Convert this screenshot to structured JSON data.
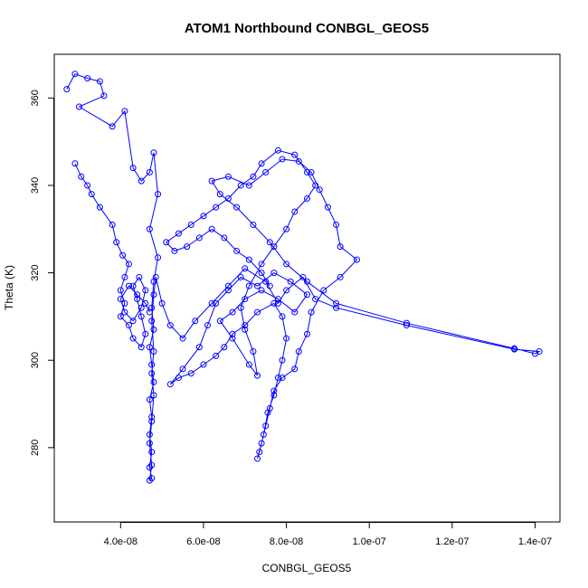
{
  "chart_data": {
    "type": "scatter",
    "title": "ATOM1 Northbound CONBGL_GEOS5",
    "xlabel": "CONBGL_GEOS5",
    "ylabel": "Theta (K)",
    "xlim": [
      2.4e-08,
      1.46e-07
    ],
    "ylim": [
      263,
      370
    ],
    "x_ticks": [
      4e-08,
      6e-08,
      8e-08,
      1e-07,
      1.2e-07,
      1.4e-07
    ],
    "x_tick_labels": [
      "4.0e-08",
      "6.0e-08",
      "8.0e-08",
      "1.0e-07",
      "1.2e-07",
      "1.4e-07"
    ],
    "y_ticks": [
      280,
      300,
      320,
      340,
      360
    ],
    "y_tick_labels": [
      "280",
      "300",
      "320",
      "340",
      "360"
    ],
    "grid": false,
    "marker": "open-circle",
    "line": "connected",
    "color": "#0000ff",
    "series": [
      {
        "points": [
          [
            2.7e-08,
            362
          ],
          [
            2.9e-08,
            365.5
          ],
          [
            3.2e-08,
            364.5
          ],
          [
            3.5e-08,
            363.8
          ],
          [
            3.6e-08,
            360.5
          ],
          [
            3e-08,
            358
          ],
          [
            3.8e-08,
            353.5
          ],
          [
            4.1e-08,
            357
          ],
          [
            4.3e-08,
            344
          ],
          [
            4.5e-08,
            341
          ],
          [
            4.7e-08,
            343
          ],
          [
            4.8e-08,
            347.5
          ],
          [
            4.9e-08,
            338
          ],
          [
            4.7e-08,
            330
          ],
          [
            4.9e-08,
            323.5
          ],
          [
            4.8e-08,
            318
          ],
          [
            4.75e-08,
            312
          ],
          [
            4.8e-08,
            307
          ],
          [
            4.7e-08,
            303
          ],
          [
            4.75e-08,
            299
          ],
          [
            4.8e-08,
            295
          ],
          [
            4.7e-08,
            291
          ],
          [
            4.75e-08,
            287
          ],
          [
            4.7e-08,
            283
          ],
          [
            4.75e-08,
            279
          ],
          [
            4.7e-08,
            275.5
          ],
          [
            4.75e-08,
            273
          ],
          [
            4.7e-08,
            272.5
          ],
          [
            4.75e-08,
            276
          ],
          [
            4.7e-08,
            281
          ],
          [
            4.75e-08,
            286
          ],
          [
            4.8e-08,
            292
          ],
          [
            4.75e-08,
            297
          ],
          [
            4.8e-08,
            302
          ],
          [
            4.75e-08,
            309
          ],
          [
            4.8e-08,
            315
          ],
          [
            4.85e-08,
            319
          ],
          [
            5e-08,
            313
          ],
          [
            5.2e-08,
            308
          ],
          [
            5.5e-08,
            305
          ],
          [
            5.8e-08,
            309
          ],
          [
            6.2e-08,
            313
          ],
          [
            6.6e-08,
            317
          ],
          [
            7e-08,
            321
          ],
          [
            7.5e-08,
            318
          ],
          [
            7.8e-08,
            313
          ],
          [
            8e-08,
            316
          ],
          [
            8.4e-08,
            319
          ],
          [
            8.7e-08,
            314
          ],
          [
            9.2e-08,
            312
          ],
          [
            1.09e-07,
            308
          ],
          [
            1.35e-07,
            302.5
          ],
          [
            1.41e-07,
            302
          ],
          [
            1.4e-07,
            301.5
          ],
          [
            1.35e-07,
            302.7
          ],
          [
            1.09e-07,
            308.5
          ],
          [
            9.2e-08,
            313
          ],
          [
            8.5e-08,
            318
          ],
          [
            8e-08,
            322
          ],
          [
            7.6e-08,
            327
          ],
          [
            7.2e-08,
            331
          ],
          [
            6.8e-08,
            335
          ],
          [
            6.4e-08,
            338
          ],
          [
            6.2e-08,
            341
          ],
          [
            6.6e-08,
            342
          ],
          [
            7.1e-08,
            340
          ],
          [
            7.5e-08,
            343
          ],
          [
            7.9e-08,
            346
          ],
          [
            8.3e-08,
            345.5
          ],
          [
            8.6e-08,
            343
          ],
          [
            8.8e-08,
            339
          ],
          [
            9e-08,
            335
          ],
          [
            9.2e-08,
            331
          ],
          [
            9.3e-08,
            326
          ],
          [
            9.7e-08,
            323
          ],
          [
            9.3e-08,
            319
          ],
          [
            8.9e-08,
            316
          ],
          [
            8.6e-08,
            311
          ],
          [
            8.5e-08,
            306
          ],
          [
            8.3e-08,
            302
          ],
          [
            8.2e-08,
            298
          ],
          [
            7.9e-08,
            296
          ],
          [
            7.7e-08,
            293
          ],
          [
            7.6e-08,
            289
          ],
          [
            7.5e-08,
            285
          ],
          [
            7.4e-08,
            281
          ],
          [
            7.3e-08,
            277.5
          ],
          [
            7.35e-08,
            279
          ],
          [
            7.45e-08,
            283
          ],
          [
            7.55e-08,
            288
          ],
          [
            7.7e-08,
            292
          ],
          [
            7.8e-08,
            296
          ],
          [
            7.9e-08,
            300
          ],
          [
            8e-08,
            305
          ],
          [
            7.9e-08,
            310
          ],
          [
            7.7e-08,
            313
          ],
          [
            7.3e-08,
            311
          ],
          [
            7e-08,
            308
          ],
          [
            6.7e-08,
            306
          ],
          [
            6.5e-08,
            303
          ],
          [
            6.3e-08,
            301
          ],
          [
            6e-08,
            299
          ],
          [
            5.7e-08,
            297
          ],
          [
            5.4e-08,
            296
          ],
          [
            5.2e-08,
            294.5
          ],
          [
            5.5e-08,
            298
          ],
          [
            5.9e-08,
            303
          ],
          [
            6.1e-08,
            308
          ],
          [
            6.3e-08,
            313
          ],
          [
            6.6e-08,
            316
          ],
          [
            6.9e-08,
            319
          ],
          [
            7.3e-08,
            317
          ],
          [
            7.7e-08,
            320
          ],
          [
            8.1e-08,
            318
          ],
          [
            8.5e-08,
            315
          ],
          [
            8.2e-08,
            311
          ],
          [
            7.8e-08,
            314
          ],
          [
            7.4e-08,
            316
          ],
          [
            7e-08,
            314
          ],
          [
            6.7e-08,
            311
          ],
          [
            6.4e-08,
            309
          ],
          [
            6.7e-08,
            305
          ],
          [
            7.1e-08,
            299
          ],
          [
            7.3e-08,
            296.5
          ],
          [
            7.2e-08,
            302
          ],
          [
            7e-08,
            307
          ],
          [
            6.9e-08,
            312
          ],
          [
            7.1e-08,
            317
          ],
          [
            7.4e-08,
            322
          ],
          [
            7.7e-08,
            326
          ],
          [
            8e-08,
            330
          ],
          [
            8.2e-08,
            334
          ],
          [
            8.5e-08,
            337
          ],
          [
            8.7e-08,
            340
          ],
          [
            8.5e-08,
            343
          ],
          [
            8.2e-08,
            347
          ],
          [
            7.8e-08,
            348
          ],
          [
            7.4e-08,
            345
          ],
          [
            7.2e-08,
            342
          ],
          [
            6.9e-08,
            340
          ],
          [
            6.6e-08,
            337
          ],
          [
            6.3e-08,
            335
          ],
          [
            6e-08,
            333
          ],
          [
            5.7e-08,
            331
          ],
          [
            5.4e-08,
            329
          ],
          [
            5.1e-08,
            327
          ],
          [
            5.3e-08,
            325
          ],
          [
            5.6e-08,
            326
          ],
          [
            5.9e-08,
            328
          ],
          [
            6.2e-08,
            330
          ],
          [
            6.5e-08,
            328
          ],
          [
            6.8e-08,
            325
          ],
          [
            7.1e-08,
            323
          ],
          [
            7.4e-08,
            320
          ],
          [
            7.6e-08,
            317
          ]
        ]
      },
      {
        "points": [
          [
            2.9e-08,
            345
          ],
          [
            3.05e-08,
            342
          ],
          [
            3.2e-08,
            340
          ],
          [
            3.3e-08,
            338
          ],
          [
            3.5e-08,
            335
          ],
          [
            3.8e-08,
            331
          ],
          [
            3.9e-08,
            327
          ],
          [
            4.05e-08,
            324
          ],
          [
            4.2e-08,
            322
          ],
          [
            4.1e-08,
            319
          ],
          [
            4e-08,
            316
          ],
          [
            4.1e-08,
            313
          ],
          [
            4e-08,
            310
          ],
          [
            4.2e-08,
            308
          ],
          [
            4.3e-08,
            305
          ],
          [
            4.5e-08,
            303
          ],
          [
            4.6e-08,
            306
          ],
          [
            4.5e-08,
            310
          ],
          [
            4.4e-08,
            314
          ],
          [
            4.3e-08,
            317
          ],
          [
            4.45e-08,
            319
          ],
          [
            4.6e-08,
            316
          ],
          [
            4.5e-08,
            312
          ],
          [
            4.3e-08,
            309
          ],
          [
            4.1e-08,
            311
          ],
          [
            4e-08,
            314
          ],
          [
            4.2e-08,
            317
          ],
          [
            4.4e-08,
            315
          ],
          [
            4.6e-08,
            313
          ],
          [
            4.7e-08,
            311
          ]
        ]
      }
    ]
  }
}
